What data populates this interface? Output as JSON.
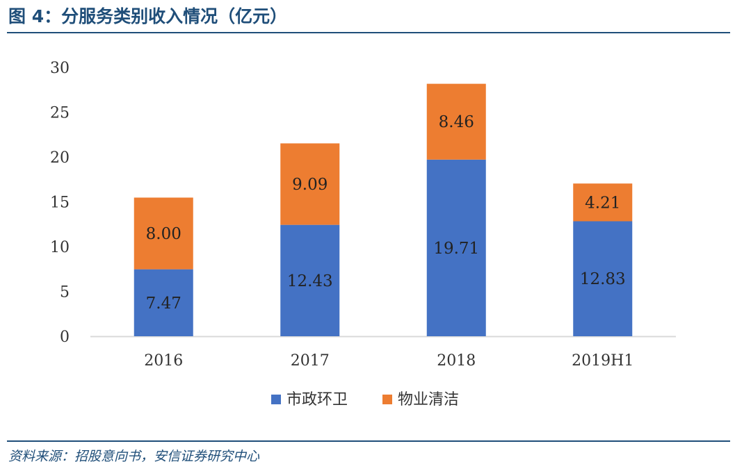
{
  "figure": {
    "title": "图 4：分服务类别收入情况（亿元）",
    "source": "资料来源：招股意向书，安信证券研究中心"
  },
  "chart_data": {
    "type": "bar",
    "stacked": true,
    "categories": [
      "2016",
      "2017",
      "2018",
      "2019H1"
    ],
    "series": [
      {
        "name": "市政环卫",
        "values": [
          7.47,
          12.43,
          19.71,
          12.83
        ],
        "labels": [
          "7.47",
          "12.43",
          "19.71",
          "12.83"
        ],
        "color": "#4472c4"
      },
      {
        "name": "物业清洁",
        "values": [
          8.0,
          9.09,
          8.46,
          4.21
        ],
        "labels": [
          "8.00",
          "9.09",
          "8.46",
          "4.21"
        ],
        "color": "#ed7d31"
      }
    ],
    "ylim": [
      0,
      30
    ],
    "yticks": [
      "0",
      "5",
      "10",
      "15",
      "20",
      "25",
      "30"
    ],
    "grid": false,
    "legend_position": "bottom",
    "xlabel": "",
    "ylabel": ""
  }
}
